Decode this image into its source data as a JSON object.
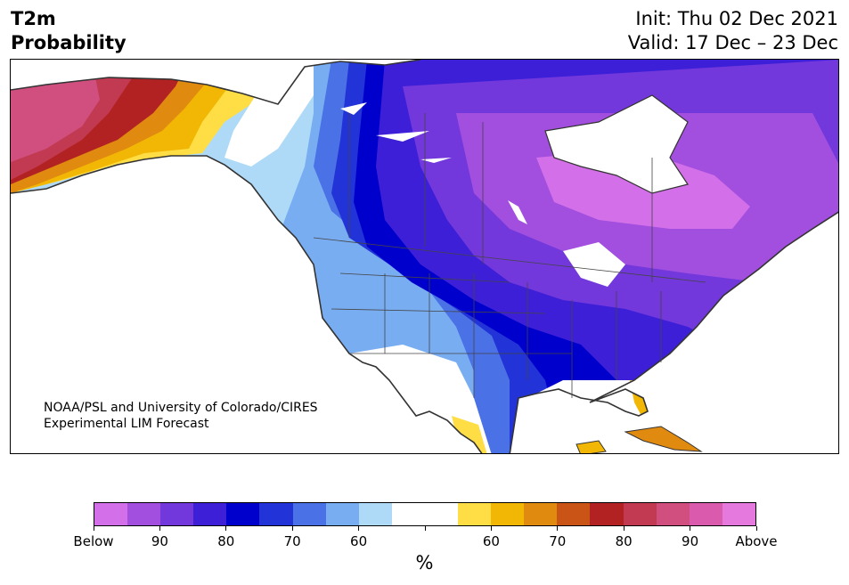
{
  "title": {
    "left_line1": "T2m",
    "left_line2": "Probability",
    "right_line1": "Init: Thu 02 Dec 2021",
    "right_line2": "Valid: 17 Dec – 23 Dec"
  },
  "credit": {
    "line1": "NOAA/PSL and University of Colorado/CIRES",
    "line2": "Experimental LIM Forecast"
  },
  "colorbar": {
    "colors": [
      "#d36fe8",
      "#a24fe0",
      "#7338dc",
      "#3d1fd8",
      "#0000cc",
      "#2233d8",
      "#4a72e6",
      "#79adf2",
      "#aedaf8",
      "#ffffff",
      "#ffffff",
      "#ffdd44",
      "#f2b705",
      "#e08a10",
      "#c95416",
      "#b22222",
      "#c23a52",
      "#d04f7f",
      "#da5aad",
      "#e679de"
    ],
    "labels": [
      "Below",
      "90",
      "80",
      "70",
      "60",
      "",
      "60",
      "70",
      "80",
      "90",
      "Above"
    ],
    "unit": "%"
  },
  "map": {
    "region": "North America",
    "variable": "2-meter temperature probability",
    "colors": {
      "ocean": "#ffffff",
      "coast": "#333333",
      "below_strong": "#d36fe8",
      "below_deep": "#0000cc",
      "above_strong": "#c23a52"
    }
  }
}
